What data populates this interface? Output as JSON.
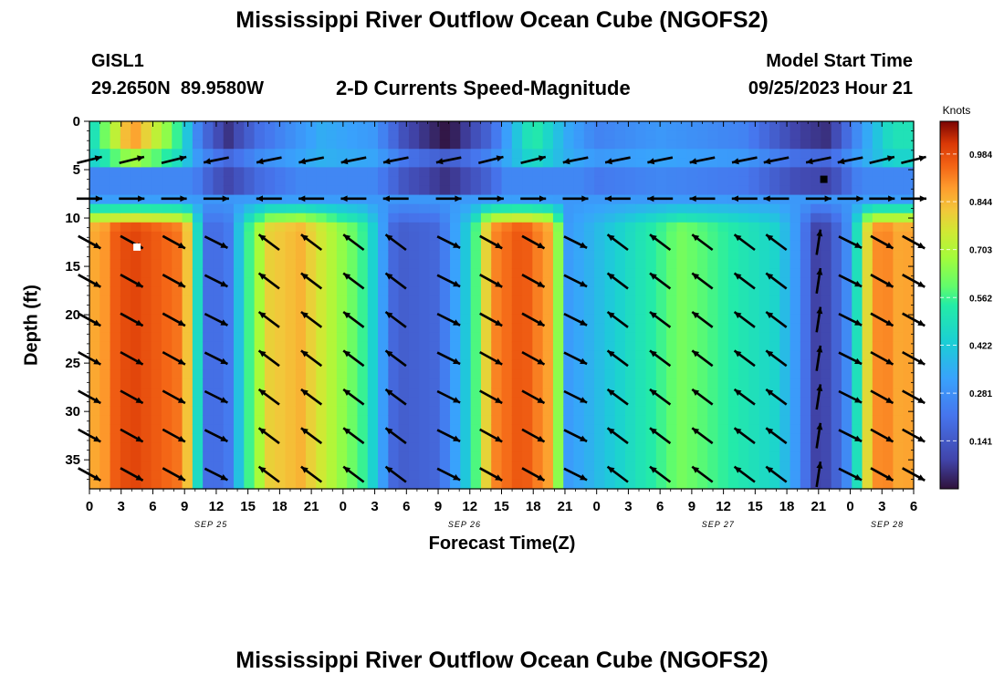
{
  "page": {
    "title": "Mississippi River Outflow Ocean Cube (NGOFS2)",
    "title_bottom": "Mississippi River Outflow Ocean Cube (NGOFS2)",
    "station": "GISL1",
    "coords": "29.2650N  89.9580W",
    "plot_title": "2-D Currents Speed-Magnitude",
    "model_start_label": "Model Start Time",
    "model_start_value": "09/25/2023 Hour 21"
  },
  "chart_data": {
    "type": "heatmap",
    "xlabel": "Forecast Time(Z)",
    "ylabel": "Depth (ft)",
    "x_hours_range": [
      0,
      78
    ],
    "ylim": [
      0,
      38
    ],
    "y_inverted": true,
    "x_tick_labels": [
      "0",
      "3",
      "6",
      "9",
      "12",
      "15",
      "18",
      "21",
      "0",
      "3",
      "6",
      "9",
      "12",
      "15",
      "18",
      "21",
      "0",
      "3",
      "6",
      "9",
      "12",
      "15",
      "18",
      "21",
      "0",
      "3",
      "6"
    ],
    "date_labels": [
      {
        "label": "SEP 25",
        "hour": 11.5
      },
      {
        "label": "SEP 26",
        "hour": 35.5
      },
      {
        "label": "SEP 27",
        "hour": 59.5
      },
      {
        "label": "SEP 28",
        "hour": 75.5
      }
    ],
    "y_ticks": [
      0,
      5,
      10,
      15,
      20,
      25,
      30,
      35
    ],
    "colorbar": {
      "title": "Knots",
      "ticks": [
        "0.141",
        "0.281",
        "0.422",
        "0.562",
        "0.703",
        "0.844",
        "0.984"
      ],
      "range": [
        0,
        1.08
      ]
    },
    "surface_speed_profile": [
      {
        "hour": 0,
        "v": 0.45
      },
      {
        "hour": 4,
        "v": 0.9
      },
      {
        "hour": 8,
        "v": 0.6
      },
      {
        "hour": 10.5,
        "v": 0.22
      },
      {
        "hour": 13,
        "v": 0.05
      },
      {
        "hour": 16,
        "v": 0.2
      },
      {
        "hour": 22,
        "v": 0.35
      },
      {
        "hour": 27,
        "v": 0.3
      },
      {
        "hour": 30,
        "v": 0.1
      },
      {
        "hour": 34,
        "v": 0.0
      },
      {
        "hour": 38,
        "v": 0.18
      },
      {
        "hour": 42,
        "v": 0.55
      },
      {
        "hour": 45,
        "v": 0.35
      },
      {
        "hour": 48,
        "v": 0.25
      },
      {
        "hour": 54,
        "v": 0.3
      },
      {
        "hour": 62,
        "v": 0.25
      },
      {
        "hour": 67,
        "v": 0.08
      },
      {
        "hour": 70,
        "v": 0.05
      },
      {
        "hour": 73,
        "v": 0.3
      },
      {
        "hour": 76,
        "v": 0.5
      },
      {
        "hour": 78,
        "v": 0.5
      }
    ],
    "deep_speed_profile": [
      {
        "hour": 0,
        "v": 0.9
      },
      {
        "hour": 4,
        "v": 1.0
      },
      {
        "hour": 9,
        "v": 0.92
      },
      {
        "hour": 11,
        "v": 0.2
      },
      {
        "hour": 13,
        "v": 0.2
      },
      {
        "hour": 15,
        "v": 0.55
      },
      {
        "hour": 17,
        "v": 0.8
      },
      {
        "hour": 20,
        "v": 0.85
      },
      {
        "hour": 26,
        "v": 0.55
      },
      {
        "hour": 29,
        "v": 0.15
      },
      {
        "hour": 33,
        "v": 0.18
      },
      {
        "hour": 36,
        "v": 0.45
      },
      {
        "hour": 38,
        "v": 0.9
      },
      {
        "hour": 41,
        "v": 0.98
      },
      {
        "hour": 44,
        "v": 0.85
      },
      {
        "hour": 45,
        "v": 0.3
      },
      {
        "hour": 48,
        "v": 0.38
      },
      {
        "hour": 52,
        "v": 0.5
      },
      {
        "hour": 56,
        "v": 0.62
      },
      {
        "hour": 60,
        "v": 0.55
      },
      {
        "hour": 65,
        "v": 0.45
      },
      {
        "hour": 67.5,
        "v": 0.25
      },
      {
        "hour": 68.5,
        "v": 0.08
      },
      {
        "hour": 70,
        "v": 0.1
      },
      {
        "hour": 72,
        "v": 0.3
      },
      {
        "hour": 74,
        "v": 0.9
      },
      {
        "hour": 78,
        "v": 0.92
      }
    ],
    "markers": [
      {
        "hour": 4.5,
        "depth": 13,
        "color": "#ffffff"
      },
      {
        "hour": 69.5,
        "depth": 6,
        "color": "#000000"
      }
    ]
  }
}
